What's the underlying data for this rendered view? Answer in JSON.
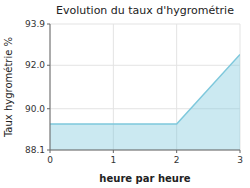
{
  "chart_data": {
    "type": "area",
    "title": "Evolution du taux d'hygrométrie",
    "xlabel": "heure par heure",
    "ylabel": "Taux hygrométrie %",
    "x": [
      0,
      2,
      3
    ],
    "values": [
      89.3,
      89.3,
      92.5
    ],
    "color": "#7ec8dc",
    "xlim": [
      0,
      3
    ],
    "ylim": [
      88.1,
      93.9
    ],
    "xticks": [
      0,
      1,
      2,
      3
    ],
    "yticks": [
      88.1,
      {
        "value": 90.0,
        "label": "90.0"
      },
      {
        "value": 92.0,
        "label": "92.0"
      },
      93.9
    ],
    "grid": true
  }
}
